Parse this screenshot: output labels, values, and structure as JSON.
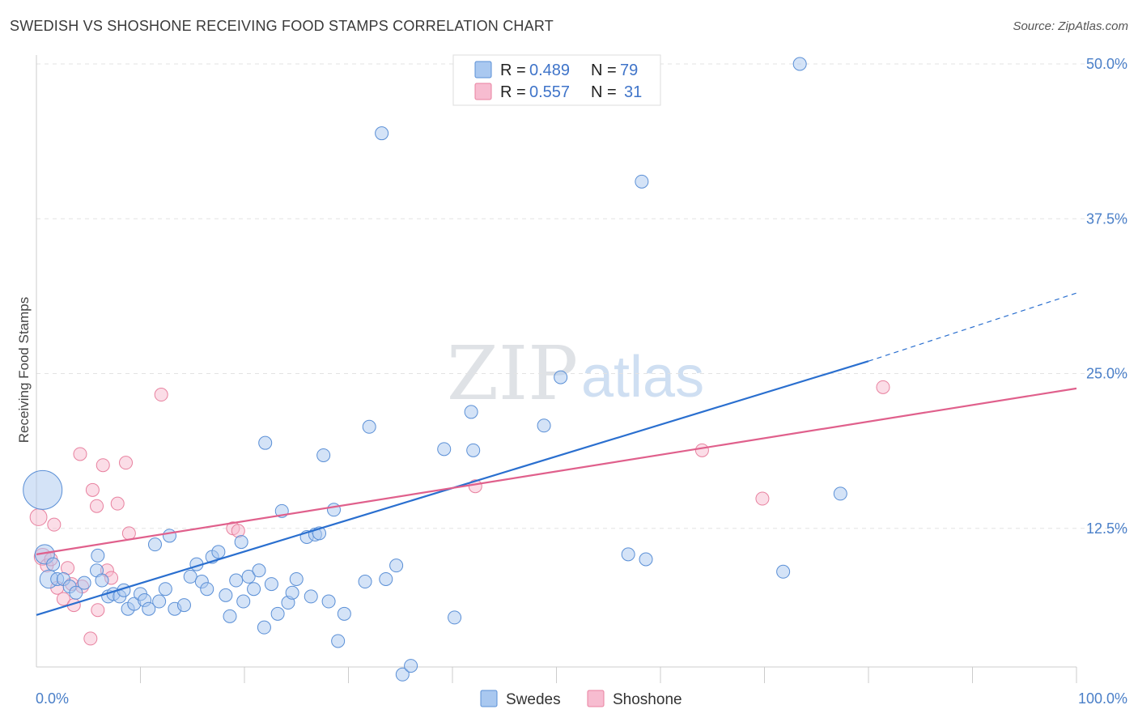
{
  "header": {
    "title": "SWEDISH VS SHOSHONE RECEIVING FOOD STAMPS CORRELATION CHART",
    "source": "Source: ZipAtlas.com"
  },
  "watermark": {
    "zip": "ZIP",
    "atlas": "atlas"
  },
  "colors": {
    "swedes_fill": "#a9c8f0",
    "swedes_stroke": "#5a8fd6",
    "swedes_line": "#2a6fcf",
    "shoshone_fill": "#f7bcd0",
    "shoshone_stroke": "#e8819f",
    "shoshone_line": "#e0608c",
    "grid": "#e3e3e3",
    "axis_label": "#4a7fc8"
  },
  "legend": {
    "rows": [
      {
        "r_label": "R =",
        "r_value": "0.489",
        "n_label": "N =",
        "n_value": "79"
      },
      {
        "r_label": "R =",
        "r_value": "0.557",
        "n_label": "N =",
        "n_value": "31"
      }
    ]
  },
  "bottom_legend": {
    "items": [
      "Swedes",
      "Shoshone"
    ]
  },
  "chart_data": {
    "type": "scatter",
    "title": "SWEDISH VS SHOSHONE RECEIVING FOOD STAMPS CORRELATION CHART",
    "xlabel": "",
    "ylabel": "Receiving Food Stamps",
    "xlim": [
      0,
      100
    ],
    "ylim": [
      0,
      50
    ],
    "x_tick_labels": [
      "0.0%",
      "100.0%"
    ],
    "y_ticks": [
      12.5,
      25.0,
      37.5,
      50.0
    ],
    "y_tick_labels": [
      "12.5%",
      "25.0%",
      "37.5%",
      "50.0%"
    ],
    "grid": true,
    "legend_position": "top-center",
    "series": [
      {
        "name": "Swedes",
        "color": "#a9c8f0",
        "r": 0.489,
        "n": 79,
        "trend": {
          "x0": 0,
          "y0": 5.5,
          "x1": 80,
          "y1": 26.0,
          "dashed_to_x": 100,
          "dashed_to_y": 31.5
        },
        "points": [
          [
            0.6,
            15.6,
            3
          ],
          [
            0.8,
            10.4,
            1.5
          ],
          [
            1.2,
            8.4,
            1.4
          ],
          [
            1.6,
            9.6,
            1
          ],
          [
            2.0,
            8.4,
            1
          ],
          [
            2.6,
            8.4,
            1
          ],
          [
            3.2,
            7.8,
            1
          ],
          [
            3.8,
            7.3,
            1
          ],
          [
            4.6,
            8.1,
            1
          ],
          [
            5.8,
            9.1,
            1
          ],
          [
            5.9,
            10.3,
            1
          ],
          [
            6.3,
            8.3,
            1
          ],
          [
            6.9,
            7.0,
            1
          ],
          [
            7.4,
            7.2,
            1
          ],
          [
            8.0,
            7.0,
            1
          ],
          [
            8.4,
            7.5,
            1
          ],
          [
            8.8,
            6.0,
            1
          ],
          [
            9.4,
            6.4,
            1
          ],
          [
            10.0,
            7.2,
            1
          ],
          [
            10.4,
            6.7,
            1
          ],
          [
            10.8,
            6.0,
            1
          ],
          [
            11.4,
            11.2,
            1
          ],
          [
            11.8,
            6.6,
            1
          ],
          [
            12.4,
            7.6,
            1
          ],
          [
            12.8,
            11.9,
            1
          ],
          [
            13.3,
            6.0,
            1
          ],
          [
            14.2,
            6.3,
            1
          ],
          [
            14.8,
            8.6,
            1
          ],
          [
            15.4,
            9.6,
            1
          ],
          [
            15.9,
            8.2,
            1
          ],
          [
            16.4,
            7.6,
            1
          ],
          [
            16.9,
            10.2,
            1
          ],
          [
            17.5,
            10.6,
            1
          ],
          [
            18.2,
            7.1,
            1
          ],
          [
            18.6,
            5.4,
            1
          ],
          [
            19.2,
            8.3,
            1
          ],
          [
            19.7,
            11.4,
            1
          ],
          [
            19.9,
            6.6,
            1
          ],
          [
            20.4,
            8.6,
            1
          ],
          [
            20.9,
            7.6,
            1
          ],
          [
            21.4,
            9.1,
            1
          ],
          [
            21.9,
            4.5,
            1
          ],
          [
            22.0,
            19.4,
            1
          ],
          [
            22.6,
            8.0,
            1
          ],
          [
            23.2,
            5.6,
            1
          ],
          [
            23.6,
            13.9,
            1
          ],
          [
            24.2,
            6.5,
            1
          ],
          [
            24.6,
            7.3,
            1
          ],
          [
            25.0,
            8.4,
            1
          ],
          [
            26.0,
            11.8,
            1
          ],
          [
            26.4,
            7.0,
            1
          ],
          [
            26.8,
            12.0,
            1
          ],
          [
            27.2,
            12.1,
            1
          ],
          [
            27.6,
            18.4,
            1
          ],
          [
            28.1,
            6.6,
            1
          ],
          [
            28.6,
            14.0,
            1
          ],
          [
            29.0,
            3.4,
            1
          ],
          [
            29.6,
            5.6,
            1
          ],
          [
            31.6,
            8.2,
            1
          ],
          [
            32.0,
            20.7,
            1
          ],
          [
            33.2,
            44.4,
            1
          ],
          [
            33.6,
            8.4,
            1
          ],
          [
            34.6,
            9.5,
            1
          ],
          [
            35.2,
            0.7,
            1
          ],
          [
            36.0,
            1.4,
            1
          ],
          [
            39.2,
            18.9,
            1
          ],
          [
            40.2,
            5.3,
            1
          ],
          [
            41.8,
            21.9,
            1
          ],
          [
            42.0,
            18.8,
            1
          ],
          [
            48.8,
            20.8,
            1
          ],
          [
            50.4,
            24.7,
            1
          ],
          [
            56.9,
            10.4,
            1
          ],
          [
            58.2,
            40.5,
            1
          ],
          [
            58.6,
            10.0,
            1
          ],
          [
            71.8,
            9.0,
            1
          ],
          [
            73.4,
            50.0,
            1
          ],
          [
            77.3,
            15.3,
            1
          ]
        ]
      },
      {
        "name": "Shoshone",
        "color": "#f7bcd0",
        "r": 0.557,
        "n": 31,
        "trend": {
          "x0": 0,
          "y0": 10.4,
          "x1": 100,
          "y1": 23.8
        },
        "points": [
          [
            0.2,
            13.4,
            1.3
          ],
          [
            0.6,
            10.2,
            1.3
          ],
          [
            1.0,
            9.5,
            1
          ],
          [
            1.4,
            10.0,
            1
          ],
          [
            1.7,
            12.8,
            1
          ],
          [
            2.0,
            7.7,
            1
          ],
          [
            2.6,
            6.8,
            1
          ],
          [
            3.0,
            9.3,
            1
          ],
          [
            3.4,
            8.0,
            1
          ],
          [
            3.6,
            6.3,
            1
          ],
          [
            4.2,
            18.5,
            1
          ],
          [
            4.4,
            7.8,
            1
          ],
          [
            5.2,
            3.6,
            1
          ],
          [
            5.4,
            15.6,
            1
          ],
          [
            5.8,
            14.3,
            1
          ],
          [
            5.9,
            5.9,
            1
          ],
          [
            6.4,
            17.6,
            1
          ],
          [
            6.8,
            9.1,
            1
          ],
          [
            7.2,
            8.5,
            1
          ],
          [
            7.8,
            14.5,
            1
          ],
          [
            8.6,
            17.8,
            1
          ],
          [
            8.9,
            12.1,
            1
          ],
          [
            12.0,
            23.3,
            1
          ],
          [
            18.9,
            12.5,
            1
          ],
          [
            19.4,
            12.3,
            1
          ],
          [
            42.2,
            15.9,
            1
          ],
          [
            64.0,
            18.8,
            1
          ],
          [
            69.8,
            14.9,
            1
          ],
          [
            81.4,
            23.9,
            1
          ]
        ]
      }
    ]
  }
}
